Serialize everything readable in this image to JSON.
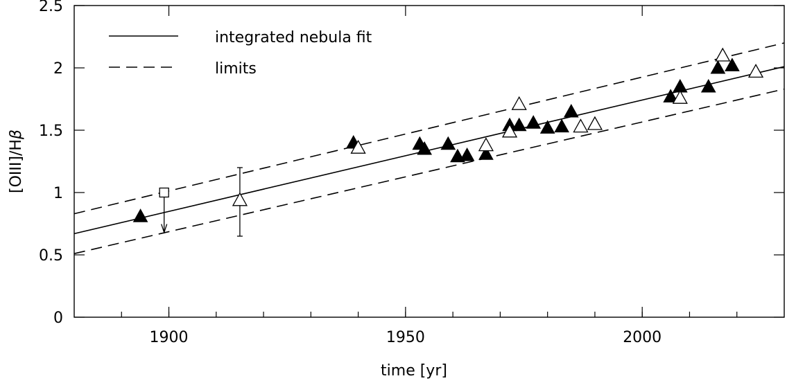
{
  "chart_data": {
    "type": "scatter",
    "xlabel": "time [yr]",
    "ylabel_parts": [
      "[OIII]/H",
      "β"
    ],
    "xlim": [
      1880,
      2030
    ],
    "ylim": [
      0,
      2.5
    ],
    "xticks": [
      1900,
      1950,
      2000
    ],
    "xticks_minor": [
      1890,
      1900,
      1910,
      1920,
      1930,
      1940,
      1950,
      1960,
      1970,
      1980,
      1990,
      2000,
      2010,
      2020
    ],
    "yticks": [
      0,
      0.5,
      1,
      1.5,
      2,
      2.5
    ],
    "ytick_labels": [
      "0",
      "0.5",
      "1",
      "1.5",
      "2",
      "2.5"
    ],
    "xtick_labels": [
      "1900",
      "1950",
      "2000"
    ],
    "legend": {
      "placement": "top-left",
      "entries": [
        {
          "label": "integrated nebula fit",
          "style": "solid"
        },
        {
          "label": "limits",
          "style": "dashed"
        }
      ]
    },
    "lines": [
      {
        "label": "integrated nebula fit",
        "style": "solid",
        "points": [
          [
            1880,
            0.67
          ],
          [
            2030,
            2.01
          ]
        ]
      },
      {
        "label": "limits",
        "style": "dashed",
        "points": [
          [
            1880,
            0.83
          ],
          [
            2030,
            2.2
          ]
        ]
      },
      {
        "label": "limits",
        "style": "dashed",
        "points": [
          [
            1880,
            0.51
          ],
          [
            2030,
            1.83
          ]
        ]
      }
    ],
    "series": [
      {
        "marker": "filled-triangle",
        "points": [
          [
            1894,
            0.81
          ],
          [
            1939,
            1.4
          ],
          [
            1953,
            1.39
          ],
          [
            1954,
            1.35
          ],
          [
            1959,
            1.39
          ],
          [
            1961,
            1.29
          ],
          [
            1963,
            1.3
          ],
          [
            1967,
            1.31
          ],
          [
            1972,
            1.54
          ],
          [
            1974,
            1.54
          ],
          [
            1977,
            1.56
          ],
          [
            1980,
            1.52
          ],
          [
            1983,
            1.53
          ],
          [
            1985,
            1.65
          ],
          [
            2006,
            1.77
          ],
          [
            2008,
            1.85
          ],
          [
            2014,
            1.85
          ],
          [
            2016,
            2.0
          ],
          [
            2019,
            2.02
          ]
        ]
      },
      {
        "marker": "open-triangle",
        "points": [
          [
            1915,
            0.94
          ],
          [
            1940,
            1.36
          ],
          [
            1967,
            1.38
          ],
          [
            1972,
            1.49
          ],
          [
            1974,
            1.71
          ],
          [
            1987,
            1.53
          ],
          [
            1990,
            1.55
          ],
          [
            2008,
            1.76
          ],
          [
            2017,
            2.1
          ],
          [
            2024,
            1.97
          ]
        ]
      },
      {
        "marker": "open-square",
        "points": [
          [
            1899,
            1.0
          ]
        ]
      }
    ],
    "error_bars": [
      {
        "x": 1915,
        "low": 0.65,
        "high": 1.2
      }
    ],
    "upper_limits": [
      {
        "x": 1899,
        "from": 1.0,
        "to": 0.68
      }
    ]
  }
}
